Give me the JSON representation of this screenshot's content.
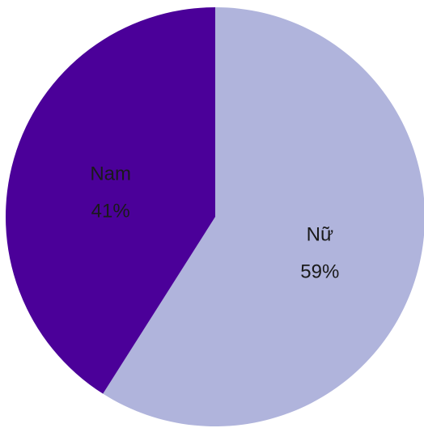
{
  "chart_data": {
    "type": "pie",
    "title": "",
    "slices": [
      {
        "label": "Nữ",
        "value": 59,
        "value_label": "59%",
        "color": "#b0b4dc"
      },
      {
        "label": "Nam",
        "value": 41,
        "value_label": "41%",
        "color": "#4b0099"
      }
    ],
    "start_angle_deg": 0,
    "direction": "clockwise",
    "legend": "none"
  }
}
